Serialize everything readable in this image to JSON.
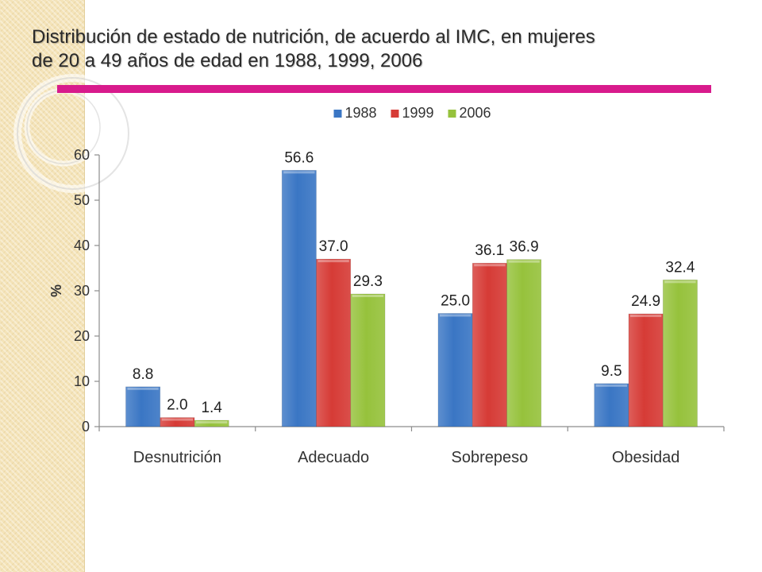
{
  "slide": {
    "title_line1": "Distribución de estado de nutrición, de acuerdo al IMC, en mujeres",
    "title_line2": "de 20 a 49 años de edad en 1988, 1999, 2006",
    "accent_color": "#d81b8c"
  },
  "chart_data": {
    "type": "bar",
    "title": "",
    "xlabel": "",
    "ylabel": "%",
    "ylim": [
      0,
      60
    ],
    "yticks": [
      0,
      10,
      20,
      30,
      40,
      50,
      60
    ],
    "grid": false,
    "legend_position": "top",
    "categories": [
      "Desnutrición",
      "Adecuado",
      "Sobrepeso",
      "Obesidad"
    ],
    "series": [
      {
        "name": "1988",
        "color": "#3a76c4",
        "values": [
          8.8,
          56.6,
          25.0,
          9.5
        ],
        "labels": [
          "8.8",
          "56.6",
          "25.0",
          "9.5"
        ]
      },
      {
        "name": "1999",
        "color": "#d63b36",
        "values": [
          2.0,
          37.0,
          36.1,
          24.9
        ],
        "labels": [
          "2.0",
          "37.0",
          "36.1",
          "24.9"
        ]
      },
      {
        "name": "2006",
        "color": "#96c23c",
        "values": [
          1.4,
          29.3,
          36.9,
          32.4
        ],
        "labels": [
          "1.4",
          "29.3",
          "36.9",
          "32.4"
        ]
      }
    ]
  }
}
